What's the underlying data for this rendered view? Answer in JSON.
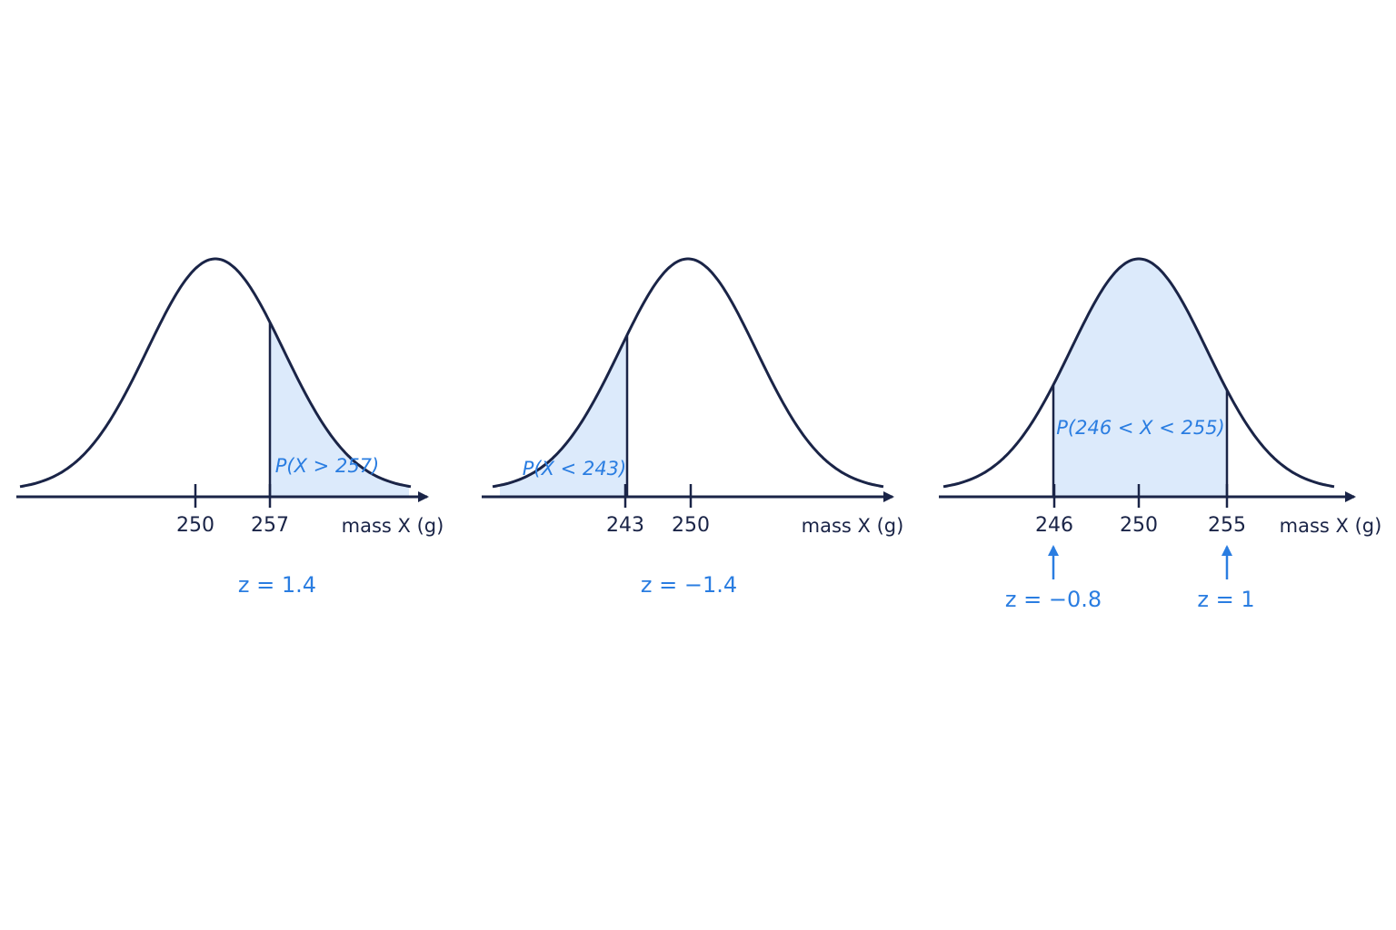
{
  "panels": [
    {
      "ticks": [
        "250",
        "257"
      ],
      "axis_label": "mass X (g)",
      "region_label": "P(X > 257)",
      "z_labels": [
        "z = 1.4"
      ]
    },
    {
      "ticks": [
        "243",
        "250"
      ],
      "axis_label": "mass X (g)",
      "region_label": "P(X < 243)",
      "z_labels": [
        "z = −1.4"
      ]
    },
    {
      "ticks": [
        "246",
        "250",
        "255"
      ],
      "axis_label": "mass X (g)",
      "region_label": "P(246 < X < 255)",
      "z_labels": [
        "z = −0.8",
        "z = 1"
      ]
    }
  ]
}
